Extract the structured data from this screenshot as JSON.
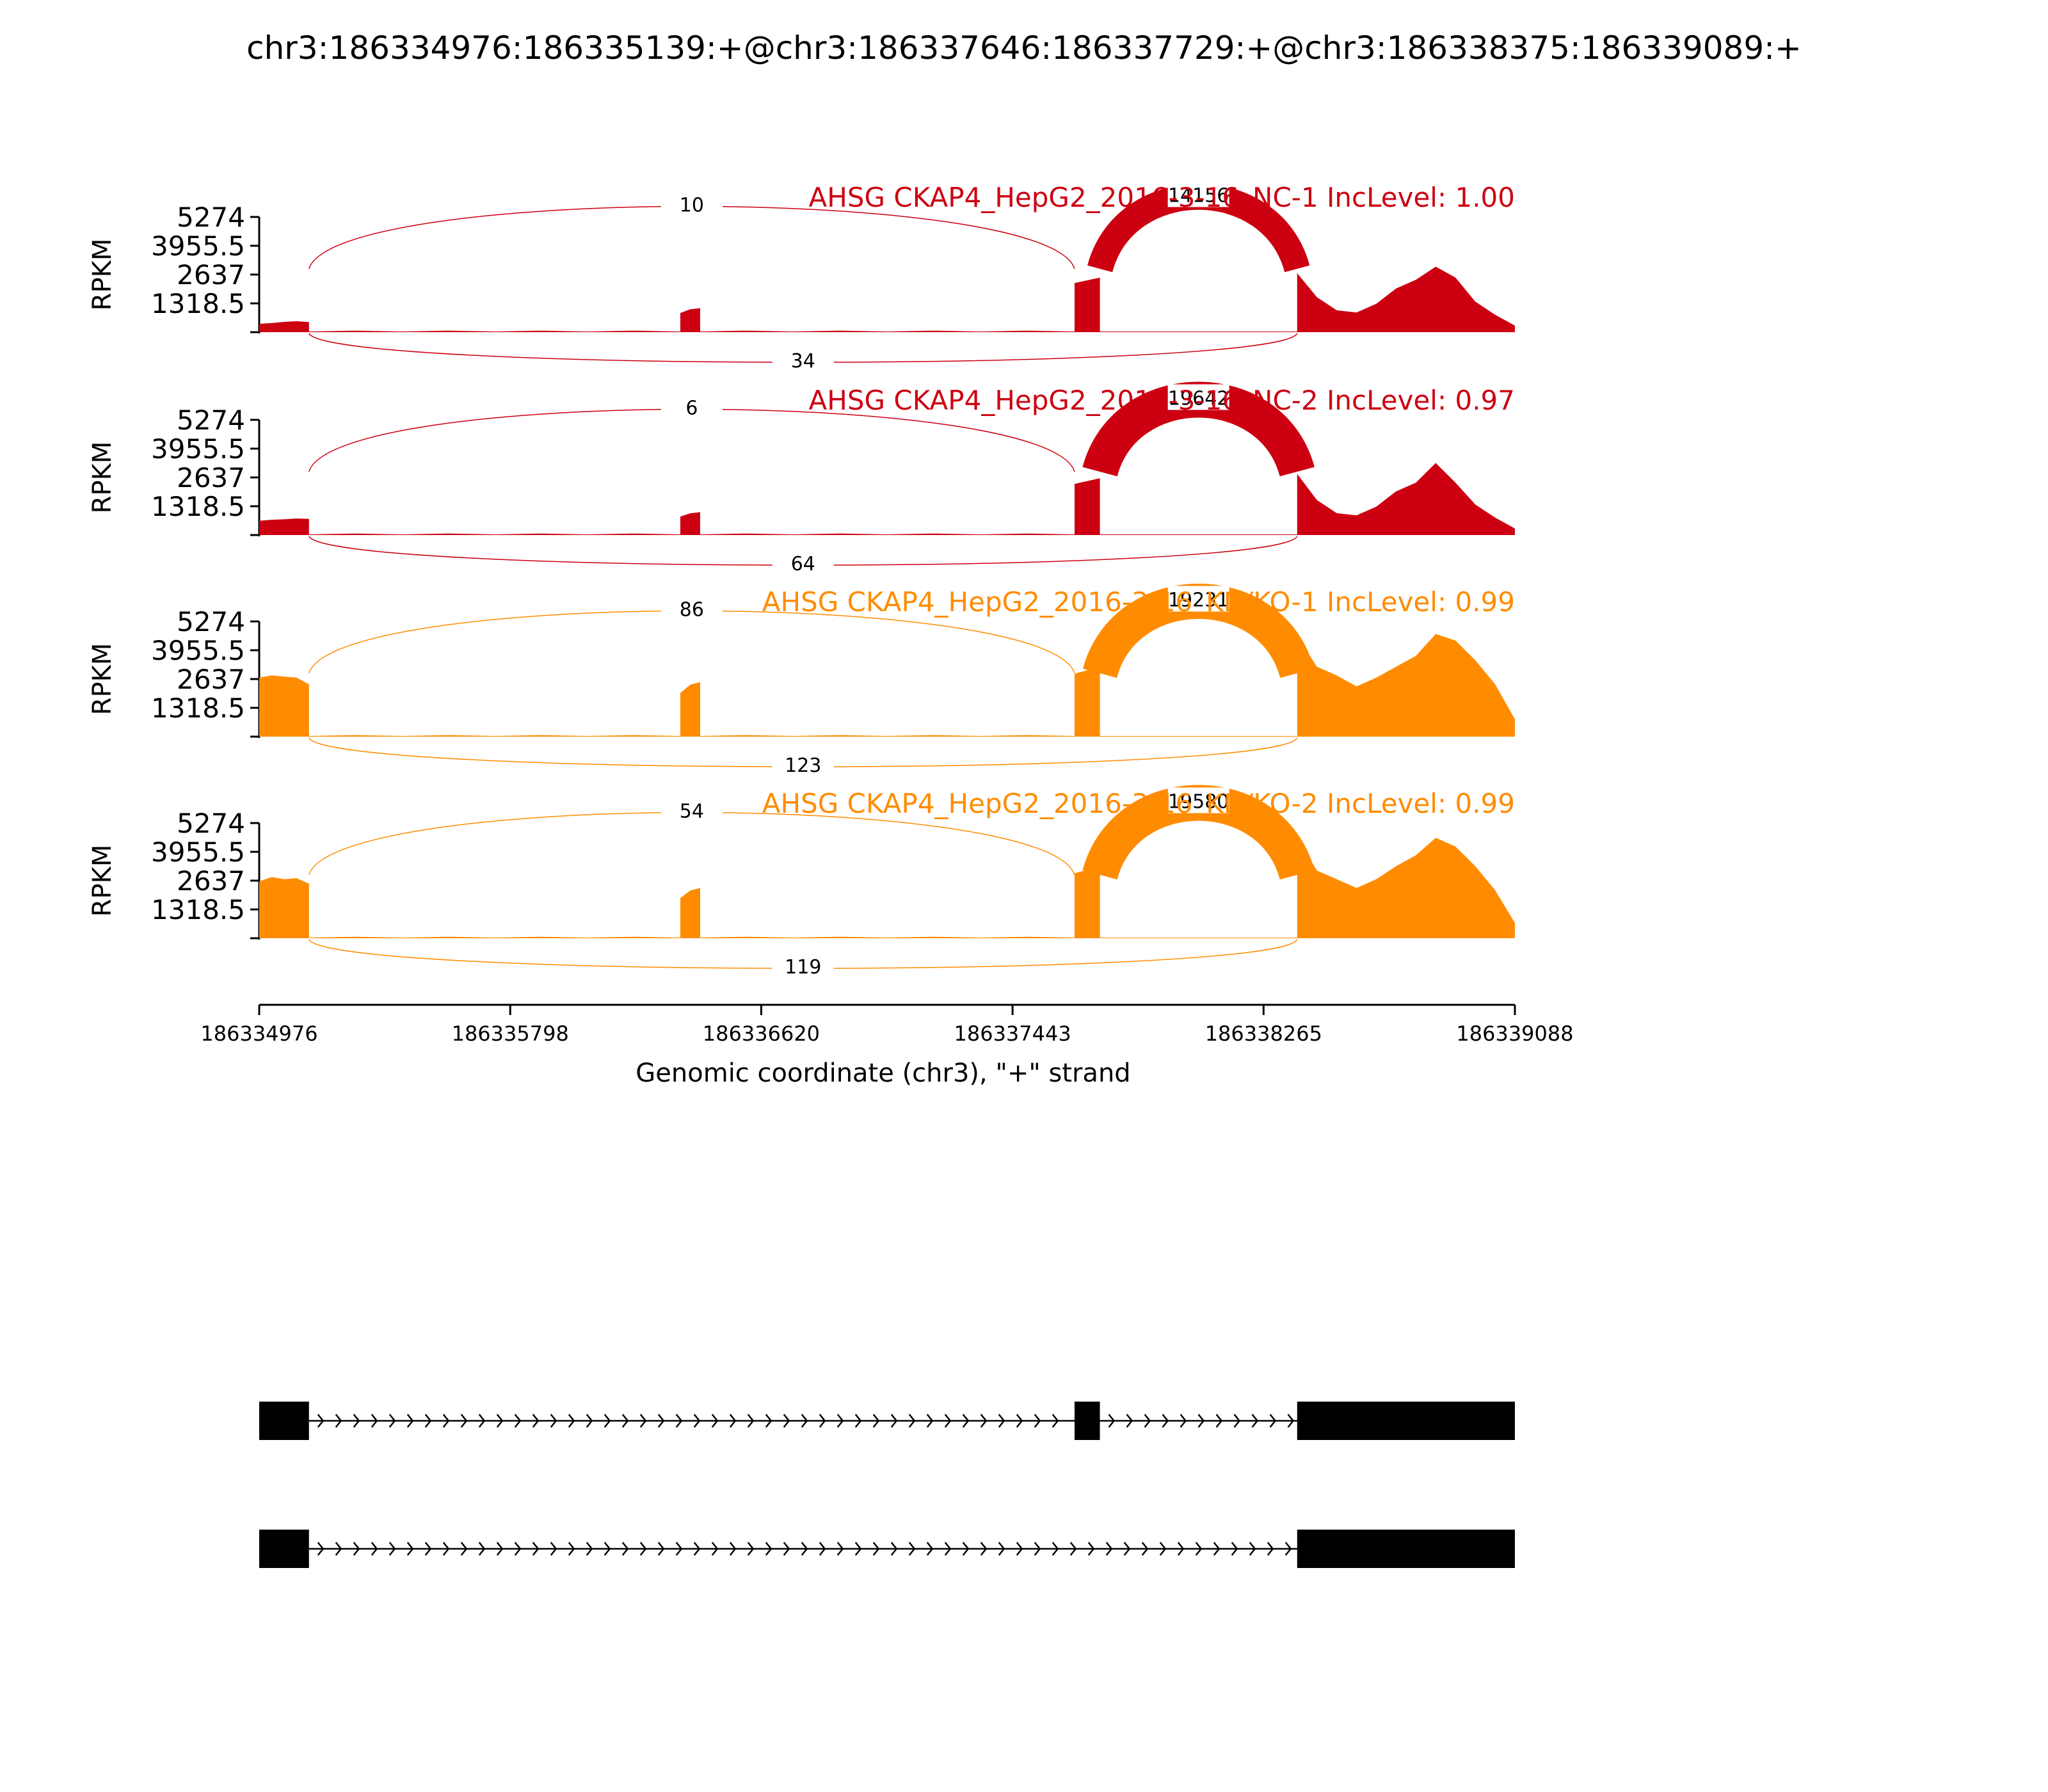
{
  "page_title": "chr3:186334976:186335139:+@chr3:186337646:186337729:+@chr3:186338375:186339089:+",
  "chart_data": {
    "type": "area",
    "title": "chr3:186334976:186335139:+@chr3:186337646:186337729:+@chr3:186338375:186339089:+",
    "xlabel": "Genomic coordinate (chr3), \"+\" strand",
    "ylabel": "RPKM",
    "xlim": [
      186334976,
      186339088
    ],
    "x_ticks": [
      "186334976",
      "186335798",
      "186336620",
      "186337443",
      "186338265",
      "186339088"
    ],
    "ylim": [
      0,
      5274
    ],
    "y_ticks": [
      "5274",
      "3955.5",
      "2637",
      "1318.5"
    ],
    "exons": [
      {
        "start": 186334976,
        "end": 186335139
      },
      {
        "start": 186337646,
        "end": 186337729
      },
      {
        "start": 186338375,
        "end": 186339089
      }
    ],
    "series": [
      {
        "name": "AHSG CKAP4_HepG2_2016-3-16_NC-1 IncLevel: 1.00",
        "color": "#cc0011",
        "exon_levels": {
          "exon1": [
            380,
            420,
            470,
            500,
            460
          ],
          "skipped": 1100,
          "exon3_start": 2500,
          "exon3_peaks": [
            2700,
            1600,
            1000,
            900,
            1300,
            2000,
            2400,
            3000,
            2500,
            1400,
            800,
            300
          ]
        },
        "junctions": [
          {
            "label": "10",
            "from": 186335139,
            "to": 186337646,
            "side": "above"
          },
          {
            "label": "14156",
            "from": 186337729,
            "to": 186338375,
            "side": "above"
          },
          {
            "label": "34",
            "from": 186335139,
            "to": 186338375,
            "side": "below"
          }
        ]
      },
      {
        "name": "AHSG CKAP4_HepG2_2016-3-16_NC-2 IncLevel: 0.97",
        "color": "#cc0011",
        "exon_levels": {
          "exon1": [
            650,
            700,
            720,
            760,
            740
          ],
          "skipped": 1050,
          "exon3_start": 2600,
          "exon3_peaks": [
            2800,
            1600,
            1000,
            900,
            1300,
            2000,
            2400,
            3300,
            2400,
            1400,
            800,
            300
          ]
        },
        "junctions": [
          {
            "label": "6",
            "from": 186335139,
            "to": 186337646,
            "side": "above"
          },
          {
            "label": "19642",
            "from": 186337729,
            "to": 186338375,
            "side": "above"
          },
          {
            "label": "64",
            "from": 186335139,
            "to": 186338375,
            "side": "below"
          }
        ]
      },
      {
        "name": "AHSG CKAP4_HepG2_2016-3-16_KD/KO-1 IncLevel: 0.99",
        "color": "#ff8c00",
        "exon_levels": {
          "exon1": [
            2700,
            2800,
            2750,
            2700,
            2400
          ],
          "skipped": 2500,
          "exon3_start": 3200,
          "exon3_peaks": [
            4600,
            3200,
            2800,
            2300,
            2700,
            3200,
            3700,
            4700,
            4400,
            3500,
            2400,
            800
          ]
        },
        "junctions": [
          {
            "label": "86",
            "from": 186335139,
            "to": 186337646,
            "side": "above"
          },
          {
            "label": "19231",
            "from": 186337729,
            "to": 186338375,
            "side": "above"
          },
          {
            "label": "123",
            "from": 186335139,
            "to": 186338375,
            "side": "below"
          }
        ]
      },
      {
        "name": "AHSG CKAP4_HepG2_2016-3-16_KD/KO-2 IncLevel: 0.99",
        "color": "#ff8c00",
        "exon_levels": {
          "exon1": [
            2600,
            2800,
            2700,
            2750,
            2500
          ],
          "skipped": 2300,
          "exon3_start": 3300,
          "exon3_peaks": [
            4600,
            3100,
            2700,
            2300,
            2700,
            3300,
            3800,
            4600,
            4200,
            3300,
            2200,
            700
          ]
        },
        "junctions": [
          {
            "label": "54",
            "from": 186335139,
            "to": 186337646,
            "side": "above"
          },
          {
            "label": "19580",
            "from": 186337729,
            "to": 186338375,
            "side": "above"
          },
          {
            "label": "119",
            "from": 186335139,
            "to": 186338375,
            "side": "below"
          }
        ]
      }
    ],
    "isoforms": [
      {
        "exons": [
          [
            186334976,
            186335139
          ],
          [
            186337646,
            186337729
          ],
          [
            186338375,
            186339089
          ]
        ]
      },
      {
        "exons": [
          [
            186334976,
            186335139
          ],
          [
            186338375,
            186339089
          ]
        ]
      }
    ]
  }
}
